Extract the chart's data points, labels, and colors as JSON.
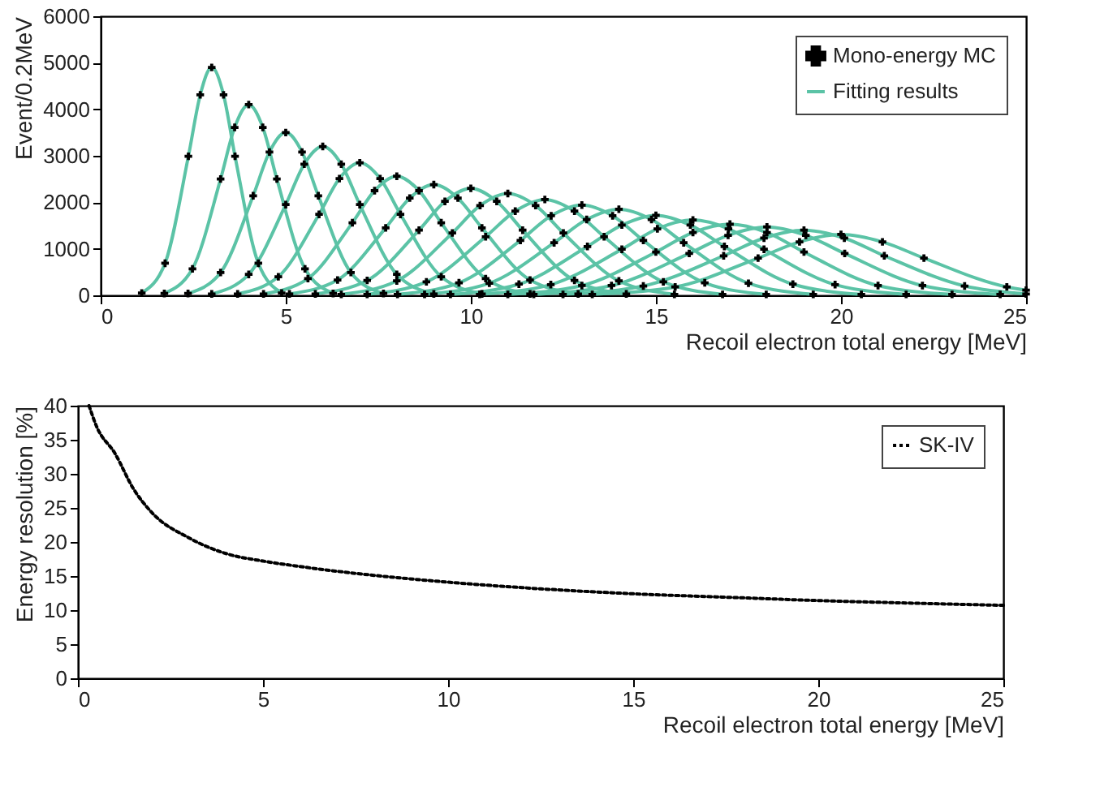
{
  "chart_data": [
    {
      "type": "line",
      "xlabel": "Recoil electron total energy [MeV]",
      "ylabel": "Event/0.2MeV",
      "xlim": [
        0,
        25
      ],
      "xticks": [
        0,
        5,
        10,
        15,
        20,
        25
      ],
      "ylim": [
        0,
        6000
      ],
      "yticks": [
        0,
        1000,
        2000,
        3000,
        4000,
        5000,
        6000
      ],
      "legend": "top right",
      "series": [
        {
          "name": "Mono-energy MC",
          "type": "scatter",
          "marker": "cross",
          "color": "#000000",
          "x": [
            1.11,
            1.74,
            2.37,
            2.69,
            3,
            3.32,
            3.63,
            4.26,
            4.89,
            1.72,
            2.48,
            3.24,
            3.62,
            4,
            4.38,
            4.76,
            5.52,
            6.28,
            2.36,
            3.24,
            4.12,
            4.56,
            5,
            5.44,
            5.88,
            6.76,
            7.64,
            3,
            4,
            5,
            5.5,
            6,
            6.5,
            7,
            8,
            9,
            3.7,
            4.8,
            5.9,
            6.45,
            7,
            7.55,
            8.1,
            9.2,
            10.3,
            4.4,
            5.6,
            6.8,
            7.4,
            8,
            8.6,
            9.2,
            10.4,
            11.6,
            5.1,
            6.4,
            7.7,
            8.35,
            9,
            9.65,
            10.3,
            11.6,
            12.9,
            5.8,
            7.2,
            8.6,
            9.3,
            10,
            10.7,
            11.4,
            12.8,
            14.2,
            6.5,
            8,
            9.5,
            10.25,
            11,
            11.75,
            12.5,
            14,
            15.5,
            7.2,
            8.8,
            10.4,
            11.2,
            12,
            12.8,
            13.6,
            15.2,
            16.8,
            8.02,
            9.68,
            11.34,
            12.17,
            13,
            13.83,
            14.66,
            16.32,
            17.98,
            8.75,
            10.5,
            12.25,
            13.13,
            14,
            14.88,
            15.75,
            17.5,
            19.25,
            9.45,
            11.3,
            13.15,
            14.08,
            15,
            15.93,
            16.85,
            18.7,
            20.55,
            10.24,
            12.16,
            14.08,
            15.04,
            16,
            16.96,
            17.92,
            19.84,
            21.76,
            11,
            13,
            15,
            16,
            17,
            18,
            19,
            21,
            23,
            11.7,
            13.8,
            15.9,
            16.95,
            18,
            19.05,
            20.1,
            22.2,
            24.3,
            12.49,
            14.66,
            16.83,
            17.92,
            19,
            20.09,
            21.17,
            23.34,
            25,
            13.28,
            15.52,
            17.76,
            18.88,
            20,
            21.12,
            22.24,
            24.48,
            25
          ],
          "values": [
            50,
            690,
            2990,
            4310,
            4900,
            4310,
            2990,
            690,
            50,
            40,
            570,
            2500,
            3610,
            4100,
            3610,
            2500,
            570,
            40,
            40,
            490,
            2140,
            3080,
            3500,
            3080,
            2140,
            490,
            40,
            30,
            450,
            1950,
            2820,
            3200,
            2820,
            1950,
            450,
            30,
            30,
            400,
            1740,
            2510,
            2850,
            2510,
            1740,
            400,
            30,
            30,
            360,
            1560,
            2250,
            2560,
            2250,
            1560,
            360,
            30,
            30,
            330,
            1450,
            2090,
            2380,
            2090,
            1450,
            330,
            30,
            30,
            320,
            1400,
            2020,
            2300,
            2020,
            1400,
            320,
            30,
            20,
            310,
            1340,
            1930,
            2190,
            1930,
            1340,
            310,
            20,
            20,
            290,
            1260,
            1810,
            2060,
            1810,
            1260,
            290,
            20,
            20,
            270,
            1180,
            1710,
            1940,
            1710,
            1180,
            270,
            20,
            20,
            260,
            1130,
            1630,
            1850,
            1630,
            1130,
            260,
            20,
            20,
            240,
            1050,
            1510,
            1720,
            1510,
            1050,
            240,
            20,
            20,
            230,
            990,
            1430,
            1620,
            1430,
            990,
            230,
            20,
            20,
            210,
            930,
            1350,
            1530,
            1350,
            930,
            210,
            20,
            20,
            210,
            900,
            1290,
            1470,
            1290,
            900,
            210,
            20,
            20,
            200,
            850,
            1230,
            1400,
            1230,
            850,
            200,
            30,
            20,
            180,
            800,
            1150,
            1310,
            1150,
            800,
            180,
            110
          ]
        },
        {
          "name": "Fitting results",
          "color": "#5bc3a6",
          "x": [
            1.11,
            1.74,
            2.37,
            2.69,
            3,
            3.32,
            3.63,
            4.26,
            4.89
          ],
          "values": [
            50,
            690,
            2990,
            4310,
            4900,
            4310,
            2990,
            690,
            50
          ]
        },
        {
          "color": "#5bc3a6",
          "x": [
            1.72,
            2.48,
            3.24,
            3.62,
            4,
            4.38,
            4.76,
            5.52,
            6.28
          ],
          "values": [
            40,
            570,
            2500,
            3610,
            4100,
            3610,
            2500,
            570,
            40
          ]
        },
        {
          "color": "#5bc3a6",
          "x": [
            2.36,
            3.24,
            4.12,
            4.56,
            5,
            5.44,
            5.88,
            6.76,
            7.64
          ],
          "values": [
            40,
            490,
            2140,
            3080,
            3500,
            3080,
            2140,
            490,
            40
          ]
        },
        {
          "color": "#5bc3a6",
          "x": [
            3,
            4,
            5,
            5.5,
            6,
            6.5,
            7,
            8,
            9
          ],
          "values": [
            30,
            450,
            1950,
            2820,
            3200,
            2820,
            1950,
            450,
            30
          ]
        },
        {
          "color": "#5bc3a6",
          "x": [
            3.7,
            4.8,
            5.9,
            6.45,
            7,
            7.55,
            8.1,
            9.2,
            10.3
          ],
          "values": [
            30,
            400,
            1740,
            2510,
            2850,
            2510,
            1740,
            400,
            30
          ]
        },
        {
          "color": "#5bc3a6",
          "x": [
            4.4,
            5.6,
            6.8,
            7.4,
            8,
            8.6,
            9.2,
            10.4,
            11.6
          ],
          "values": [
            30,
            360,
            1560,
            2250,
            2560,
            2250,
            1560,
            360,
            30
          ]
        },
        {
          "color": "#5bc3a6",
          "x": [
            5.1,
            6.4,
            7.7,
            8.35,
            9,
            9.65,
            10.3,
            11.6,
            12.9
          ],
          "values": [
            30,
            330,
            1450,
            2090,
            2380,
            2090,
            1450,
            330,
            30
          ]
        },
        {
          "color": "#5bc3a6",
          "x": [
            5.8,
            7.2,
            8.6,
            9.3,
            10,
            10.7,
            11.4,
            12.8,
            14.2
          ],
          "values": [
            30,
            320,
            1400,
            2020,
            2300,
            2020,
            1400,
            320,
            30
          ]
        },
        {
          "color": "#5bc3a6",
          "x": [
            6.5,
            8,
            9.5,
            10.25,
            11,
            11.75,
            12.5,
            14,
            15.5
          ],
          "values": [
            20,
            310,
            1340,
            1930,
            2190,
            1930,
            1340,
            310,
            20
          ]
        },
        {
          "color": "#5bc3a6",
          "x": [
            7.2,
            8.8,
            10.4,
            11.2,
            12,
            12.8,
            13.6,
            15.2,
            16.8
          ],
          "values": [
            20,
            290,
            1260,
            1810,
            2060,
            1810,
            1260,
            290,
            20
          ]
        },
        {
          "color": "#5bc3a6",
          "x": [
            8.02,
            9.68,
            11.34,
            12.17,
            13,
            13.83,
            14.66,
            16.32,
            17.98
          ],
          "values": [
            20,
            270,
            1180,
            1710,
            1940,
            1710,
            1180,
            270,
            20
          ]
        },
        {
          "color": "#5bc3a6",
          "x": [
            8.75,
            10.5,
            12.25,
            13.13,
            14,
            14.88,
            15.75,
            17.5,
            19.25
          ],
          "values": [
            20,
            260,
            1130,
            1630,
            1850,
            1630,
            1130,
            260,
            20
          ]
        },
        {
          "color": "#5bc3a6",
          "x": [
            9.45,
            11.3,
            13.15,
            14.08,
            15,
            15.93,
            16.85,
            18.7,
            20.55
          ],
          "values": [
            20,
            240,
            1050,
            1510,
            1720,
            1510,
            1050,
            240,
            20
          ]
        },
        {
          "color": "#5bc3a6",
          "x": [
            10.24,
            12.16,
            14.08,
            15.04,
            16,
            16.96,
            17.92,
            19.84,
            21.76
          ],
          "values": [
            20,
            230,
            990,
            1430,
            1620,
            1430,
            990,
            230,
            20
          ]
        },
        {
          "color": "#5bc3a6",
          "x": [
            11,
            13,
            15,
            16,
            17,
            18,
            19,
            21,
            23
          ],
          "values": [
            20,
            210,
            930,
            1350,
            1530,
            1350,
            930,
            210,
            20
          ]
        },
        {
          "color": "#5bc3a6",
          "x": [
            11.7,
            13.8,
            15.9,
            16.95,
            18,
            19.05,
            20.1,
            22.2,
            24.3
          ],
          "values": [
            20,
            210,
            900,
            1290,
            1470,
            1290,
            900,
            210,
            20
          ]
        },
        {
          "color": "#5bc3a6",
          "x": [
            12.49,
            14.66,
            16.83,
            17.92,
            19,
            20.09,
            21.17,
            23.34,
            25
          ],
          "values": [
            20,
            200,
            850,
            1230,
            1400,
            1230,
            850,
            200,
            30
          ]
        },
        {
          "color": "#5bc3a6",
          "x": [
            13.28,
            15.52,
            17.76,
            18.88,
            20,
            21.12,
            22.24,
            24.48,
            25
          ],
          "values": [
            20,
            180,
            800,
            1150,
            1310,
            1150,
            800,
            180,
            110
          ]
        }
      ]
    },
    {
      "type": "line",
      "xlabel": "Recoil electron total energy [MeV]",
      "ylabel": "Energy resolution [%]",
      "xlim": [
        0,
        25
      ],
      "xticks": [
        0,
        5,
        10,
        15,
        20,
        25
      ],
      "ylim": [
        0,
        40
      ],
      "yticks": [
        0,
        5,
        10,
        15,
        20,
        25,
        30,
        35,
        40
      ],
      "legend": "top right",
      "line_style": "dotted",
      "series": [
        {
          "name": "SK-IV",
          "color": "#000000",
          "x": [
            0.3,
            0.5,
            1,
            1.5,
            2,
            3,
            4,
            5,
            6,
            7,
            8,
            10,
            12,
            15,
            18,
            20,
            22,
            25
          ],
          "values": [
            40,
            37,
            33,
            27.8,
            24.3,
            20.6,
            18.3,
            17.2,
            16.4,
            15.7,
            15.1,
            14.1,
            13.3,
            12.4,
            11.8,
            11.4,
            11.1,
            10.7
          ]
        }
      ]
    }
  ]
}
